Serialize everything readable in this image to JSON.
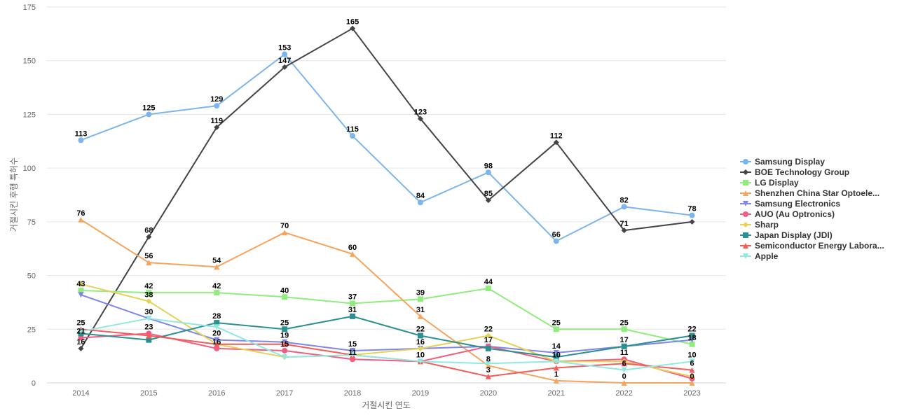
{
  "chart_data": {
    "type": "line",
    "title": "",
    "xlabel": "거절시킨 연도",
    "ylabel": "거절시킨 후행 특허수",
    "categories": [
      "2014",
      "2015",
      "2016",
      "2017",
      "2018",
      "2019",
      "2020",
      "2021",
      "2022",
      "2023"
    ],
    "ylim": [
      0,
      175
    ],
    "yticks": [
      0,
      25,
      50,
      75,
      100,
      125,
      150,
      175
    ],
    "grid": true,
    "legend_position": "right",
    "series": [
      {
        "name": "Samsung Display",
        "color": "#7cb5ec",
        "marker": "circle",
        "values": [
          113,
          125,
          129,
          153,
          115,
          84,
          98,
          66,
          82,
          78
        ]
      },
      {
        "name": "BOE Technology Group",
        "color": "#434348",
        "marker": "diamond",
        "values": [
          16,
          68,
          119,
          147,
          165,
          123,
          85,
          112,
          71,
          75
        ]
      },
      {
        "name": "LG Display",
        "color": "#90ed7d",
        "marker": "square",
        "values": [
          43,
          42,
          42,
          40,
          37,
          39,
          44,
          25,
          25,
          18
        ]
      },
      {
        "name": "Shenzhen China Star Optoele...",
        "color": "#f7a35c",
        "marker": "triangle",
        "values": [
          76,
          56,
          54,
          70,
          60,
          31,
          8,
          1,
          0,
          0
        ]
      },
      {
        "name": "Samsung Electronics",
        "color": "#8085e9",
        "marker": "triangle-down",
        "values": [
          41,
          30,
          20,
          19,
          15,
          16,
          17,
          14,
          17,
          20
        ]
      },
      {
        "name": "AUO (Au Optronics)",
        "color": "#f15c80",
        "marker": "circle",
        "values": [
          21,
          23,
          16,
          15,
          11,
          10,
          17,
          10,
          11,
          2
        ]
      },
      {
        "name": "Sharp",
        "color": "#e4d354",
        "marker": "diamond",
        "values": [
          46,
          38,
          18,
          12,
          13,
          16,
          22,
          10,
          10,
          3
        ]
      },
      {
        "name": "Japan Display (JDI)",
        "color": "#2b908f",
        "marker": "square",
        "values": [
          23,
          20,
          28,
          25,
          31,
          22,
          16,
          12,
          17,
          22
        ]
      },
      {
        "name": "Semiconductor Energy Labora...",
        "color": "#f45b5b",
        "marker": "triangle",
        "values": [
          25,
          22,
          18,
          18,
          13,
          10,
          3,
          7,
          9,
          6
        ]
      },
      {
        "name": "Apple",
        "color": "#91e8e1",
        "marker": "triangle-down",
        "values": [
          24,
          30,
          26,
          12,
          13,
          10,
          9,
          10,
          6,
          10
        ]
      }
    ],
    "data_labels": [
      {
        "x": "2014",
        "values": [
          113,
          76,
          43,
          25,
          21,
          16
        ]
      },
      {
        "x": "2015",
        "values": [
          125,
          68,
          56,
          42,
          38,
          30,
          23
        ]
      },
      {
        "x": "2016",
        "values": [
          129,
          119,
          54,
          42,
          28,
          20,
          16
        ]
      },
      {
        "x": "2017",
        "values": [
          153,
          147,
          70,
          40,
          25,
          19,
          15
        ]
      },
      {
        "x": "2018",
        "values": [
          165,
          115,
          60,
          37,
          31,
          15,
          11
        ]
      },
      {
        "x": "2019",
        "values": [
          123,
          84,
          39,
          31,
          22,
          16,
          10
        ]
      },
      {
        "x": "2020",
        "values": [
          98,
          85,
          44,
          22,
          17,
          8,
          3
        ]
      },
      {
        "x": "2021",
        "values": [
          112,
          66,
          25,
          14,
          10,
          1
        ]
      },
      {
        "x": "2022",
        "values": [
          82,
          71,
          25,
          17,
          11,
          6,
          0
        ]
      },
      {
        "x": "2023",
        "values": [
          78,
          22,
          18,
          10,
          6,
          0
        ]
      }
    ]
  }
}
